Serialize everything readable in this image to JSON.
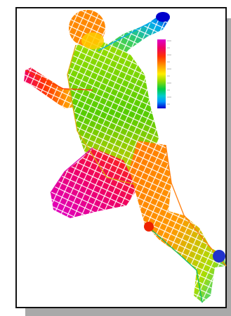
{
  "scene": {
    "subject": "wireframe-figure",
    "colormap": [
      "#0000cc",
      "#0099ff",
      "#00cccc",
      "#00cc44",
      "#99dd00",
      "#ffee00",
      "#ff9900",
      "#ff3300",
      "#ee0066",
      "#dd00cc"
    ],
    "frame_color": "#111111",
    "shadow_color": "#a9a9a9",
    "background": "#ffffff"
  }
}
